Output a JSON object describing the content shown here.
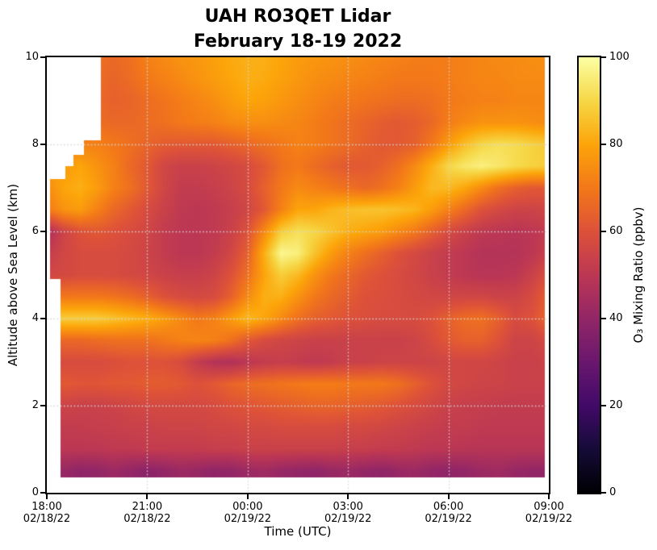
{
  "chart_data": {
    "type": "heatmap",
    "title_line1": "UAH RO3QET Lidar",
    "title_line2": "February 18-19 2022",
    "xlabel": "Time (UTC)",
    "ylabel": "Altitude above Sea Level (km)",
    "x_range_hours": [
      0,
      15
    ],
    "y_range_km": [
      0,
      10
    ],
    "x_ticks": [
      {
        "hours": 0,
        "time": "18:00",
        "date": "02/18/22"
      },
      {
        "hours": 3,
        "time": "21:00",
        "date": "02/18/22"
      },
      {
        "hours": 6,
        "time": "00:00",
        "date": "02/19/22"
      },
      {
        "hours": 9,
        "time": "03:00",
        "date": "02/19/22"
      },
      {
        "hours": 12,
        "time": "06:00",
        "date": "02/19/22"
      },
      {
        "hours": 15,
        "time": "09:00",
        "date": "02/19/22"
      }
    ],
    "y_ticks_km": [
      0,
      2,
      4,
      6,
      8,
      10
    ],
    "gridlines": {
      "x_hours": [
        3,
        6,
        9,
        12
      ],
      "y_km": [
        2,
        4,
        6,
        8
      ],
      "style": "dotted",
      "color": "#d4d4d4"
    },
    "colorbar": {
      "label": "O₃ Mixing Ratio (ppbv)",
      "min": 0,
      "max": 100,
      "ticks": [
        0,
        20,
        40,
        60,
        80,
        100
      ],
      "colormap": "inferno",
      "stops": [
        "#000004",
        "#160b39",
        "#420a68",
        "#6a176e",
        "#932667",
        "#bc3754",
        "#dd513a",
        "#f37819",
        "#fca50a",
        "#f6d746",
        "#fcffa4"
      ]
    },
    "coverage": {
      "t_min": 0.1,
      "t_max": 14.89,
      "z_min": 0.35,
      "z_max": 10,
      "left_steps": [
        {
          "t_max": 0.41,
          "z_min": 4.9,
          "z_max": 7.2
        },
        {
          "t_max": 0.55,
          "z_max": 7.2
        },
        {
          "t_max": 0.8,
          "z_max": 7.5
        },
        {
          "t_max": 1.1,
          "z_max": 7.75
        },
        {
          "t_max": 1.62,
          "z_max": 8.1
        }
      ]
    },
    "heatmap_grid": {
      "units": "ppbv",
      "t_start_hours": 0,
      "t_step_hours": 0.5,
      "z_top_km": 10,
      "z_step_km": 0.5,
      "rows_ordered": "top(10km) to bottom(0.5km)",
      "values": [
        [
          70,
          70,
          70,
          68,
          66,
          68,
          72,
          74,
          76,
          77,
          79,
          81,
          82,
          82,
          80,
          78,
          77,
          76,
          75,
          74,
          73,
          72,
          71,
          71,
          71,
          72,
          73,
          74,
          74,
          75,
          75
        ],
        [
          70,
          70,
          70,
          67,
          65,
          67,
          70,
          72,
          74,
          76,
          78,
          80,
          82,
          81,
          79,
          77,
          75,
          74,
          73,
          72,
          71,
          70,
          70,
          70,
          71,
          72,
          73,
          73,
          74,
          74,
          74
        ],
        [
          68,
          68,
          68,
          66,
          64,
          65,
          67,
          69,
          71,
          73,
          75,
          78,
          80,
          79,
          77,
          75,
          73,
          71,
          70,
          69,
          68,
          67,
          67,
          68,
          70,
          71,
          72,
          72,
          73,
          73,
          73
        ],
        [
          66,
          66,
          67,
          67,
          66,
          66,
          67,
          68,
          70,
          71,
          72,
          74,
          75,
          75,
          74,
          73,
          71,
          69,
          67,
          65,
          63,
          62,
          63,
          66,
          71,
          74,
          76,
          76,
          76,
          75,
          74
        ],
        [
          72,
          72,
          72,
          72,
          70,
          68,
          65,
          63,
          62,
          62,
          62,
          64,
          66,
          68,
          70,
          72,
          71,
          69,
          67,
          64,
          62,
          62,
          64,
          70,
          78,
          85,
          90,
          92,
          91,
          89,
          87
        ],
        [
          78,
          78,
          80,
          76,
          72,
          66,
          62,
          56,
          54,
          54,
          55,
          56,
          58,
          62,
          68,
          70,
          67,
          64,
          62,
          62,
          64,
          68,
          74,
          82,
          90,
          94,
          96,
          94,
          91,
          89,
          88
        ],
        [
          74,
          80,
          82,
          78,
          72,
          68,
          62,
          56,
          52,
          52,
          53,
          55,
          58,
          64,
          70,
          74,
          72,
          70,
          68,
          66,
          68,
          72,
          78,
          84,
          84,
          80,
          74,
          68,
          64,
          62,
          62
        ],
        [
          70,
          76,
          78,
          72,
          66,
          62,
          58,
          54,
          51,
          50,
          51,
          53,
          56,
          62,
          72,
          80,
          80,
          83,
          85,
          86,
          86,
          85,
          83,
          78,
          72,
          66,
          60,
          57,
          55,
          55,
          56
        ],
        [
          45,
          55,
          60,
          62,
          60,
          58,
          56,
          52,
          50,
          50,
          51,
          54,
          60,
          74,
          88,
          92,
          90,
          86,
          82,
          80,
          78,
          74,
          70,
          64,
          58,
          54,
          51,
          50,
          49,
          50,
          52
        ],
        [
          52,
          56,
          58,
          58,
          58,
          57,
          55,
          52,
          50,
          50,
          52,
          56,
          64,
          82,
          98,
          96,
          86,
          78,
          72,
          68,
          64,
          60,
          57,
          54,
          52,
          50,
          48,
          48,
          48,
          50,
          54
        ],
        [
          56,
          57,
          58,
          58,
          58,
          57,
          56,
          54,
          53,
          53,
          55,
          60,
          68,
          80,
          88,
          84,
          76,
          70,
          66,
          62,
          60,
          58,
          56,
          54,
          52,
          50,
          49,
          49,
          50,
          54,
          60
        ],
        [
          70,
          70,
          70,
          70,
          69,
          67,
          64,
          60,
          58,
          57,
          58,
          64,
          74,
          82,
          82,
          76,
          70,
          66,
          63,
          60,
          59,
          58,
          57,
          56,
          56,
          56,
          56,
          55,
          55,
          58,
          64
        ],
        [
          87,
          88,
          88,
          88,
          86,
          84,
          82,
          78,
          74,
          70,
          72,
          78,
          84,
          80,
          74,
          68,
          64,
          62,
          60,
          59,
          58,
          58,
          58,
          60,
          64,
          67,
          68,
          64,
          58,
          60,
          66
        ],
        [
          66,
          66,
          66,
          67,
          68,
          68,
          68,
          70,
          72,
          73,
          72,
          68,
          62,
          58,
          56,
          55,
          54,
          54,
          54,
          54,
          54,
          54,
          55,
          58,
          62,
          64,
          64,
          60,
          55,
          55,
          58
        ],
        [
          58,
          58,
          58,
          58,
          59,
          60,
          60,
          60,
          58,
          52,
          48,
          47,
          50,
          52,
          53,
          52,
          51,
          52,
          54,
          54,
          55,
          55,
          55,
          55,
          56,
          56,
          56,
          55,
          54,
          54,
          55
        ],
        [
          62,
          62,
          61,
          61,
          62,
          62,
          63,
          63,
          62,
          60,
          62,
          65,
          67,
          68,
          69,
          70,
          71,
          71,
          70,
          70,
          70,
          68,
          64,
          60,
          57,
          56,
          55,
          55,
          54,
          54,
          54
        ],
        [
          56,
          55,
          54,
          54,
          55,
          56,
          57,
          57,
          57,
          57,
          58,
          60,
          61,
          62,
          63,
          64,
          65,
          65,
          64,
          63,
          62,
          60,
          58,
          56,
          54,
          53,
          53,
          52,
          52,
          52,
          52
        ],
        [
          52,
          52,
          52,
          53,
          53,
          54,
          54,
          55,
          55,
          55,
          56,
          56,
          57,
          57,
          58,
          58,
          58,
          58,
          57,
          57,
          56,
          55,
          54,
          53,
          52,
          52,
          51,
          51,
          51,
          51,
          51
        ],
        [
          50,
          50,
          50,
          50,
          51,
          51,
          52,
          52,
          52,
          52,
          53,
          53,
          54,
          54,
          54,
          54,
          54,
          54,
          53,
          53,
          52,
          52,
          51,
          50,
          50,
          49,
          49,
          49,
          49,
          49,
          49
        ],
        [
          40,
          41,
          39,
          40,
          42,
          40,
          38,
          40,
          42,
          41,
          39,
          40,
          42,
          43,
          41,
          40,
          39,
          41,
          42,
          40,
          39,
          41,
          42,
          40,
          39,
          40,
          42,
          43,
          41,
          40,
          40
        ]
      ]
    }
  }
}
